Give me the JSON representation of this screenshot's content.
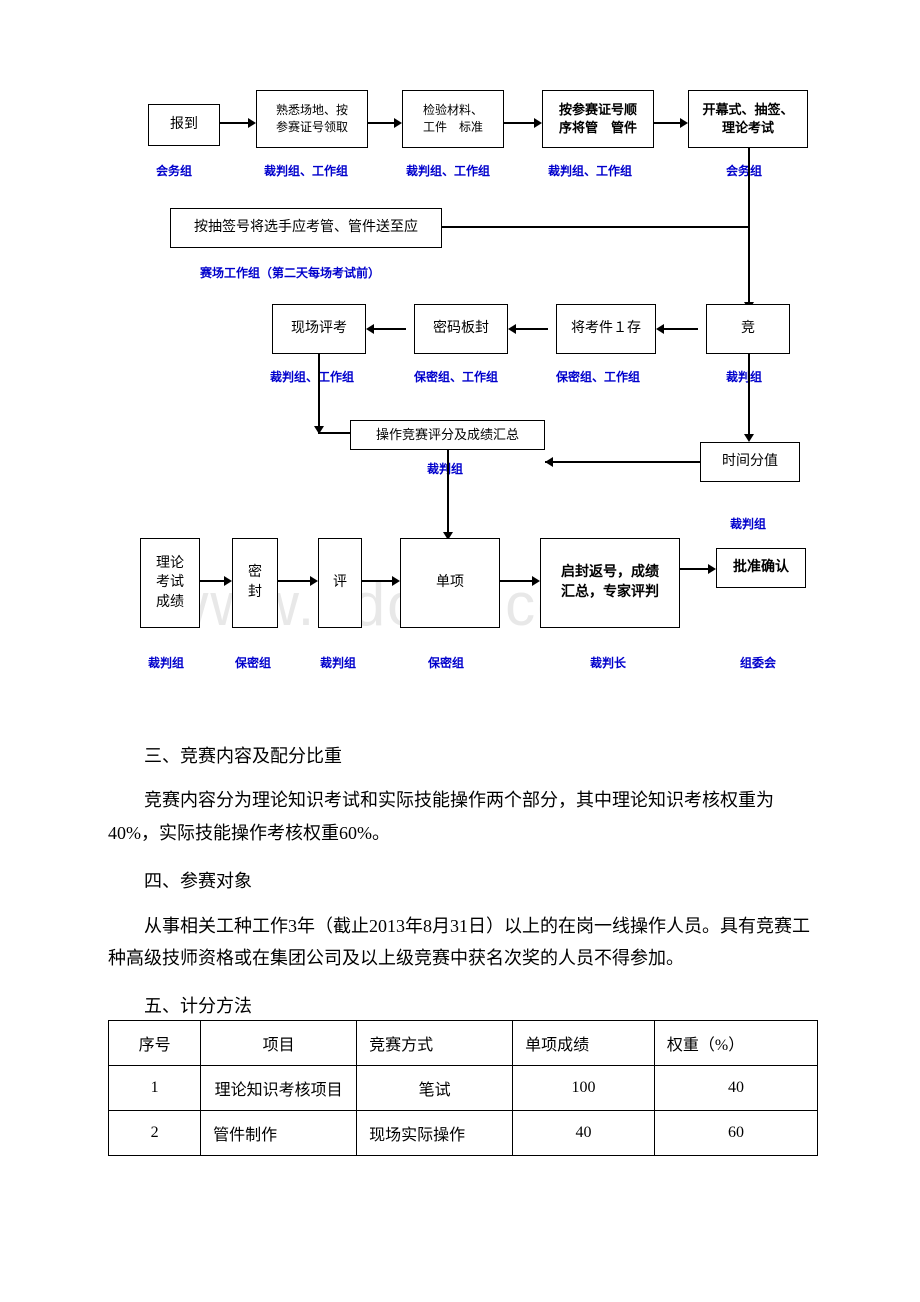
{
  "flowchart": {
    "row1": {
      "box1": "报到",
      "box2": "熟悉场地、按\n参赛证号领取",
      "box3": "检验材料、\n工件　标准",
      "box4": "按参赛证号顺\n序将管　管件",
      "box5": "开幕式、抽签、\n理论考试"
    },
    "row1_captions": {
      "c1": "会务组",
      "c2": "裁判组、工作组",
      "c3": "裁判组、工作组",
      "c4": "裁判组、工作组",
      "c5": "会务组"
    },
    "row2": {
      "box1": "按抽签号将选手应考管、管件送至应"
    },
    "row2_caption": "赛场工作组（第二天每场考试前）",
    "row3": {
      "box1": "现场评考",
      "box2": "密码板封",
      "box3": "将考件１存",
      "box4": "竞"
    },
    "row3_captions": {
      "c1": "裁判组、工作组",
      "c2": "保密组、工作组",
      "c3": "保密组、工作组",
      "c4": "裁判组"
    },
    "row4": {
      "box1": "操作竞赛评分及成绩汇总",
      "box2": "时间分值"
    },
    "row4_captions": {
      "c1": "裁判组",
      "c2": "裁判组"
    },
    "row5": {
      "box1": "理论\n考试\n成绩",
      "box2": "密\n封",
      "box3": "评",
      "box4": "单项",
      "box5": "启封返号，成绩\n汇总，专家评判",
      "box6": "批准确认"
    },
    "row5_captions": {
      "c1": "裁判组",
      "c2": "保密组",
      "c3": "裁判组",
      "c4": "保密组",
      "c5": "裁判长",
      "c6": "组委会"
    }
  },
  "body_text": {
    "heading3": "三、竞赛内容及配分比重",
    "para3": "竞赛内容分为理论知识考试和实际技能操作两个部分，其中理论知识考核权重为40%，实际技能操作考核权重60%。",
    "heading4": "四、参赛对象",
    "para4": "从事相关工种工作3年（截止2013年8月31日）以上的在岗一线操作人员。具有竞赛工种高级技师资格或在集团公司及以上级竞赛中获名次奖的人员不得参加。",
    "heading5": "五、计分方法"
  },
  "table": {
    "headers": [
      "序号",
      "项目",
      "竞赛方式",
      "单项成绩",
      "权重（%）"
    ],
    "rows": [
      [
        "1",
        "理论知识考核项目",
        "笔试",
        "100",
        "40"
      ],
      [
        "2",
        "管件制作",
        "现场实际操作",
        "40",
        "60"
      ]
    ]
  },
  "watermark": "www.bdocx.com"
}
